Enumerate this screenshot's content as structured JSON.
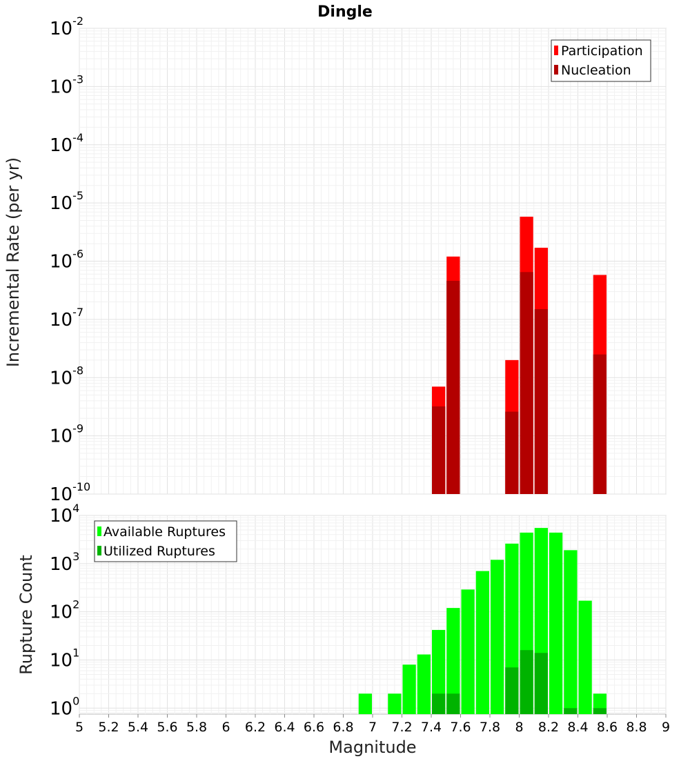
{
  "chart_data": [
    {
      "type": "bar",
      "title": "Dingle",
      "xlabel": "",
      "ylabel": "Incremental Rate (per yr)",
      "yscale": "log",
      "ylim": [
        1e-10,
        0.01
      ],
      "xlim": [
        5,
        9
      ],
      "legend_position": "top-right",
      "colors": {
        "Participation": "#ff0000",
        "Nucleation": "#b30000"
      },
      "series": [
        {
          "name": "Participation",
          "x": [
            7.45,
            7.55,
            7.95,
            8.05,
            8.15,
            8.55
          ],
          "values": [
            7e-09,
            1.2e-06,
            2e-08,
            5.8e-06,
            1.7e-06,
            5.8e-07
          ]
        },
        {
          "name": "Nucleation",
          "x": [
            7.45,
            7.55,
            7.95,
            8.05,
            8.15,
            8.55
          ],
          "values": [
            3.2e-09,
            4.6e-07,
            2.6e-09,
            6.5e-07,
            1.5e-07,
            2.5e-08
          ]
        }
      ]
    },
    {
      "type": "bar",
      "title": "",
      "xlabel": "Magnitude",
      "ylabel": "Rupture Count",
      "yscale": "log",
      "ylim": [
        0.75,
        10000
      ],
      "xlim": [
        5,
        9
      ],
      "legend_position": "top-left",
      "x_ticks": [
        "5",
        "5.2",
        "5.4",
        "5.6",
        "5.8",
        "6",
        "6.2",
        "6.4",
        "6.6",
        "6.8",
        "7",
        "7.2",
        "7.4",
        "7.6",
        "7.8",
        "8",
        "8.2",
        "8.4",
        "8.6",
        "8.8",
        "9"
      ],
      "colors": {
        "Available Ruptures": "#00ff00",
        "Utilized Ruptures": "#00b300"
      },
      "series": [
        {
          "name": "Available Ruptures",
          "x": [
            6.95,
            7.15,
            7.25,
            7.35,
            7.45,
            7.55,
            7.65,
            7.75,
            7.85,
            7.95,
            8.05,
            8.15,
            8.25,
            8.35,
            8.45,
            8.55
          ],
          "values": [
            2,
            2,
            8,
            13,
            42,
            120,
            290,
            700,
            1200,
            2600,
            4400,
            5500,
            4400,
            1900,
            170,
            2
          ]
        },
        {
          "name": "Utilized Ruptures",
          "x": [
            7.45,
            7.55,
            7.95,
            8.05,
            8.15,
            8.35,
            8.55
          ],
          "values": [
            2,
            2,
            7,
            16,
            14,
            1,
            1
          ]
        }
      ]
    }
  ]
}
